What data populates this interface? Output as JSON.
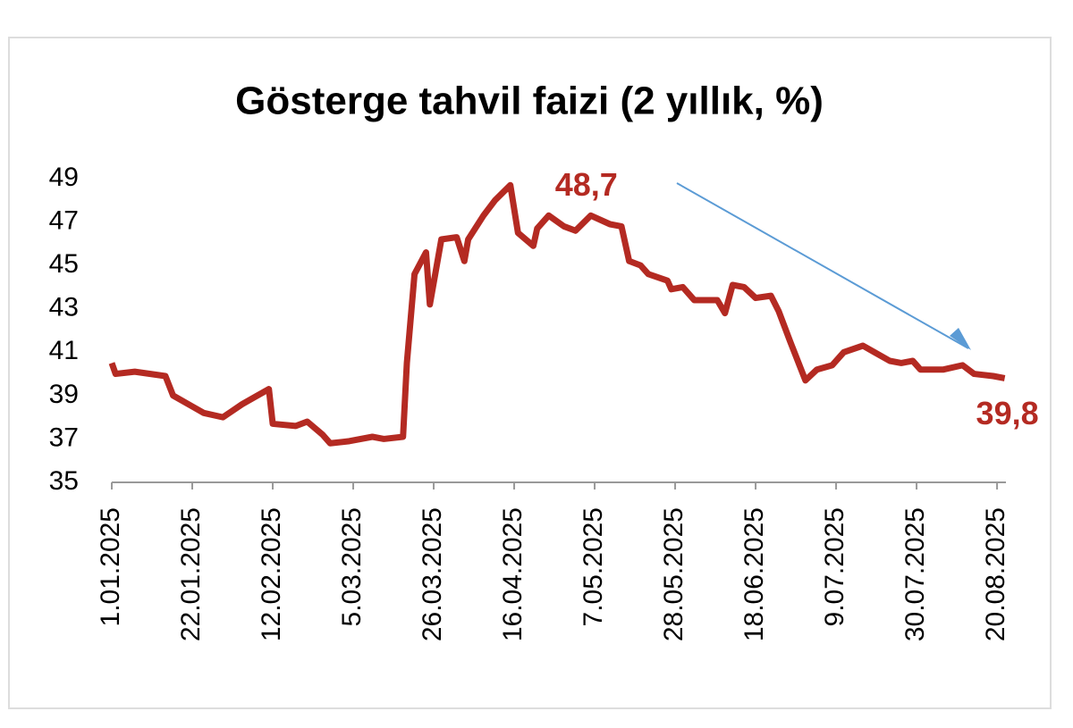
{
  "chart_data": {
    "type": "line",
    "title": "Gösterge tahvil faizi (2 yıllık, %)",
    "x": [
      "1.01.2025",
      "2.01.2025",
      "7.01.2025",
      "15.01.2025",
      "17.01.2025",
      "22.01.2025",
      "25.01.2025",
      "30.01.2025",
      "4.02.2025",
      "8.02.2025",
      "11.02.2025",
      "12.02.2025",
      "18.02.2025",
      "21.02.2025",
      "25.02.2025",
      "27.02.2025",
      "4.03.2025",
      "10.03.2025",
      "13.03.2025",
      "18.03.2025",
      "19.03.2025",
      "21.03.2025",
      "24.03.2025",
      "25.03.2025",
      "28.03.2025",
      "1.04.2025",
      "3.04.2025",
      "4.04.2025",
      "8.04.2025",
      "11.04.2025",
      "15.04.2025",
      "17.04.2025",
      "21.04.2025",
      "22.04.2025",
      "25.04.2025",
      "29.04.2025",
      "2.05.2025",
      "6.05.2025",
      "11.05.2025",
      "14.05.2025",
      "16.05.2025",
      "19.05.2025",
      "21.05.2025",
      "26.05.2025",
      "27.05.2025",
      "30.05.2025",
      "2.06.2025",
      "8.06.2025",
      "10.06.2025",
      "12.06.2025",
      "15.06.2025",
      "18.06.2025",
      "22.06.2025",
      "24.06.2025",
      "27.06.2025",
      "1.07.2025",
      "4.07.2025",
      "8.07.2025",
      "11.07.2025",
      "16.07.2025",
      "19.07.2025",
      "23.07.2025",
      "26.07.2025",
      "29.07.2025",
      "31.07.2025",
      "6.08.2025",
      "11.08.2025",
      "14.08.2025",
      "19.08.2025",
      "22.08.2025"
    ],
    "series": [
      {
        "color": "#b42a22",
        "values": [
          40.5,
          40.0,
          40.1,
          39.9,
          39.0,
          38.5,
          38.2,
          38.0,
          38.6,
          39.0,
          39.3,
          37.7,
          37.6,
          37.8,
          37.2,
          36.8,
          36.9,
          37.1,
          37.0,
          37.1,
          40.5,
          44.6,
          45.6,
          43.2,
          46.2,
          46.3,
          45.2,
          46.2,
          47.3,
          48.0,
          48.7,
          46.5,
          45.9,
          46.7,
          47.3,
          46.8,
          46.6,
          47.3,
          46.9,
          46.8,
          45.2,
          45.0,
          44.6,
          44.3,
          43.9,
          44.0,
          43.4,
          43.4,
          42.8,
          44.1,
          44.0,
          43.5,
          43.6,
          42.9,
          41.5,
          39.7,
          40.2,
          40.4,
          41.0,
          41.3,
          41.0,
          40.6,
          40.5,
          40.6,
          40.2,
          40.2,
          40.4,
          40.0,
          39.9,
          39.8
        ]
      }
    ],
    "xticks": [
      "1.01.2025",
      "22.01.2025",
      "12.02.2025",
      "5.03.2025",
      "26.03.2025",
      "16.04.2025",
      "7.05.2025",
      "28.05.2025",
      "18.06.2025",
      "9.07.2025",
      "30.07.2025",
      "20.08.2025"
    ],
    "ylim": [
      35,
      49
    ],
    "yticks": [
      35,
      37,
      39,
      41,
      43,
      45,
      47,
      49
    ],
    "grid": false,
    "annotations": [
      {
        "x": "15.04.2025",
        "label": "48,7"
      },
      {
        "x": "22.08.2025",
        "label": "39,8"
      }
    ]
  }
}
